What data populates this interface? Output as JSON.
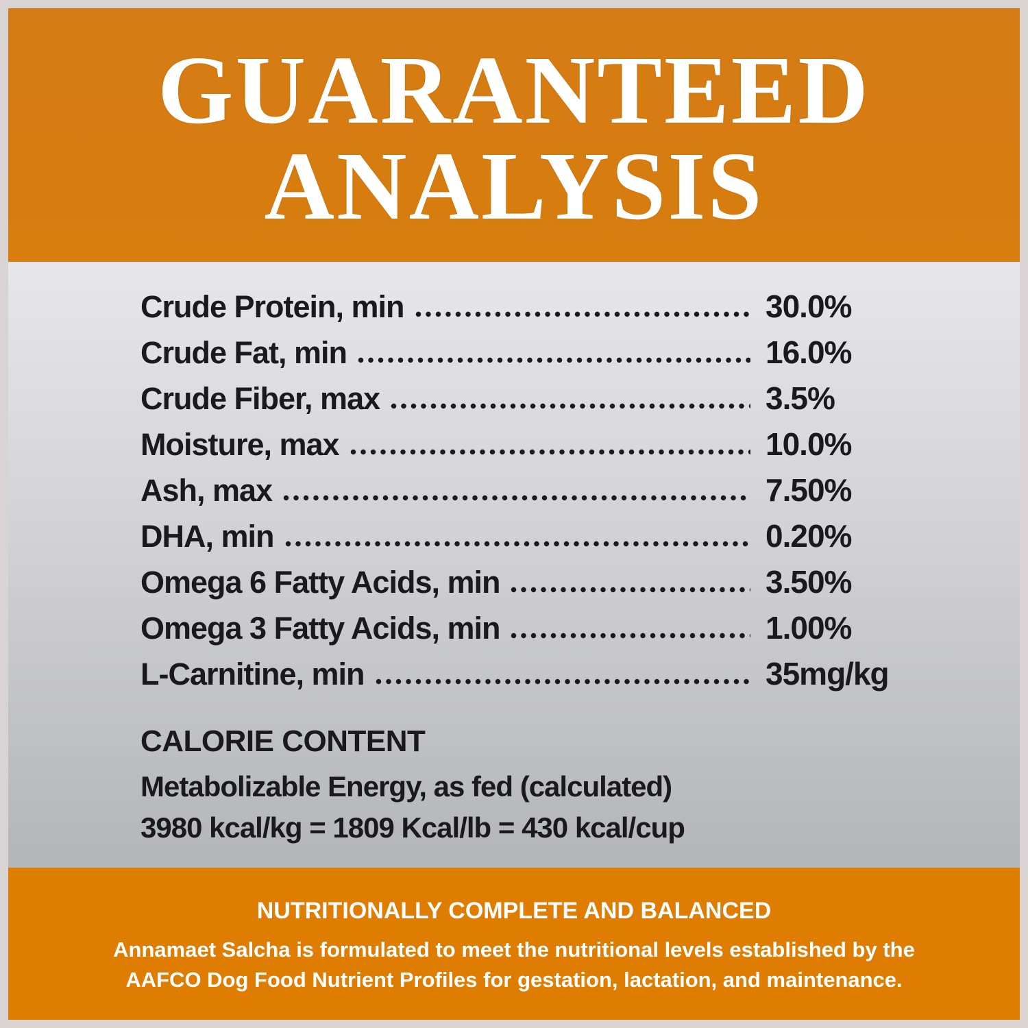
{
  "header": {
    "title_line1": "GUARANTEED",
    "title_line2": "ANALYSIS"
  },
  "analysis": {
    "rows": [
      {
        "label": "Crude Protein, min",
        "value": "30.0%"
      },
      {
        "label": "Crude Fat, min",
        "value": "16.0%"
      },
      {
        "label": "Crude Fiber, max",
        "value": "3.5%"
      },
      {
        "label": "Moisture, max",
        "value": "10.0%"
      },
      {
        "label": "Ash, max",
        "value": "7.50%"
      },
      {
        "label": "DHA, min",
        "value": "0.20%"
      },
      {
        "label": "Omega 6 Fatty Acids, min",
        "value": "3.50%"
      },
      {
        "label": "Omega 3 Fatty Acids, min",
        "value": "1.00%"
      },
      {
        "label": "L-Carnitine, min",
        "value": "35mg/kg"
      }
    ]
  },
  "calorie": {
    "heading": "CALORIE CONTENT",
    "line1": "Metabolizable Energy, as fed (calculated)",
    "line2": "3980 kcal/kg = 1809 Kcal/lb = 430 kcal/cup"
  },
  "footer": {
    "heading": "NUTRITIONALLY COMPLETE AND BALANCED",
    "line1": "Annamaet Salcha is formulated to meet the nutritional levels established by the",
    "line2": "AAFCO Dog Food Nutrient Profiles for gestation, lactation, and maintenance."
  },
  "colors": {
    "orange_top": "#d67c12",
    "orange_bottom": "#df7d02",
    "panel_gray_top": "#e7e7e9",
    "panel_gray_bottom": "#b3b5b7",
    "border": "#d9d3d4",
    "text_dark": "#1a1a1c",
    "text_white": "#ffffff"
  }
}
